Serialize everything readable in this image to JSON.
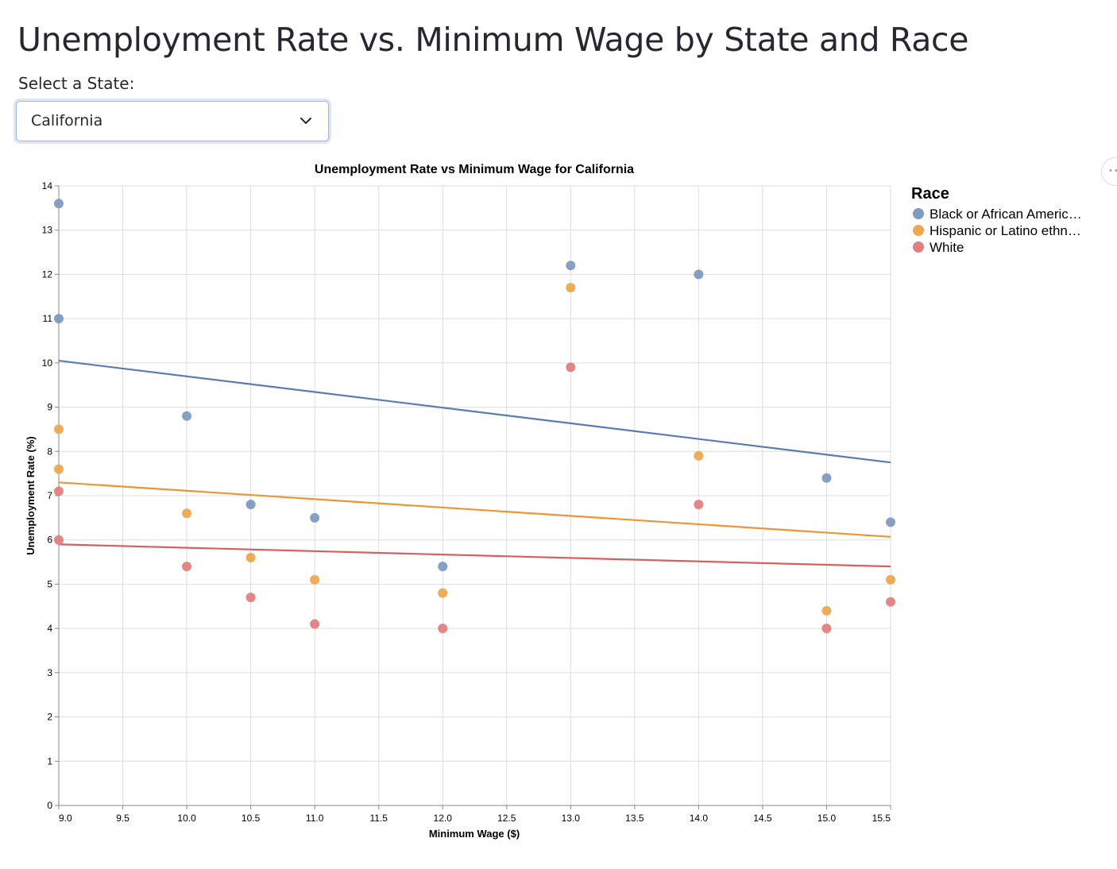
{
  "page": {
    "title": "Unemployment Rate vs. Minimum Wage by State and Race",
    "select_label": "Select a State:",
    "selected_state": "California",
    "dropdown_icon": "chevron-down-icon",
    "menu_icon": "more-horizontal-icon"
  },
  "chart_data": {
    "type": "scatter",
    "title": "Unemployment Rate vs Minimum Wage for California",
    "xlabel": "Minimum Wage ($)",
    "ylabel": "Unemployment Rate (%)",
    "xlim": [
      9.0,
      15.5
    ],
    "ylim": [
      0,
      14
    ],
    "x_ticks": [
      "9.0",
      "9.5",
      "10.0",
      "10.5",
      "11.0",
      "11.5",
      "12.0",
      "12.5",
      "13.0",
      "13.5",
      "14.0",
      "14.5",
      "15.0",
      "15.5"
    ],
    "y_ticks": [
      "0",
      "1",
      "2",
      "3",
      "4",
      "5",
      "6",
      "7",
      "8",
      "9",
      "10",
      "11",
      "12",
      "13",
      "14"
    ],
    "grid": true,
    "legend": {
      "title": "Race",
      "placement": "right"
    },
    "series": [
      {
        "name": "Black or African Americ…",
        "color": "#7e9bc1",
        "line_color": "#5b7bb4",
        "points": [
          [
            9.0,
            13.6
          ],
          [
            9.0,
            11.0
          ],
          [
            10.0,
            8.8
          ],
          [
            10.5,
            6.8
          ],
          [
            11.0,
            6.5
          ],
          [
            12.0,
            5.4
          ],
          [
            13.0,
            12.2
          ],
          [
            14.0,
            12.0
          ],
          [
            15.0,
            7.4
          ],
          [
            15.5,
            6.4
          ]
        ],
        "trend": [
          [
            9.0,
            10.05
          ],
          [
            15.5,
            7.75
          ]
        ]
      },
      {
        "name": "Hispanic or Latino ethn…",
        "color": "#eda84f",
        "line_color": "#ec9535",
        "points": [
          [
            9.0,
            8.5
          ],
          [
            9.0,
            7.6
          ],
          [
            10.0,
            6.6
          ],
          [
            10.5,
            5.6
          ],
          [
            11.0,
            5.1
          ],
          [
            12.0,
            4.8
          ],
          [
            13.0,
            11.7
          ],
          [
            14.0,
            7.9
          ],
          [
            15.0,
            4.4
          ],
          [
            15.5,
            5.1
          ]
        ],
        "trend": [
          [
            9.0,
            7.3
          ],
          [
            15.5,
            6.07
          ]
        ]
      },
      {
        "name": "White",
        "color": "#e07f7f",
        "line_color": "#d85f5f",
        "points": [
          [
            9.0,
            7.1
          ],
          [
            9.0,
            6.0
          ],
          [
            10.0,
            5.4
          ],
          [
            10.5,
            4.7
          ],
          [
            11.0,
            4.1
          ],
          [
            12.0,
            4.0
          ],
          [
            13.0,
            9.9
          ],
          [
            14.0,
            6.8
          ],
          [
            15.0,
            4.0
          ],
          [
            15.5,
            4.6
          ]
        ],
        "trend": [
          [
            9.0,
            5.9
          ],
          [
            15.5,
            5.4
          ]
        ]
      }
    ]
  }
}
